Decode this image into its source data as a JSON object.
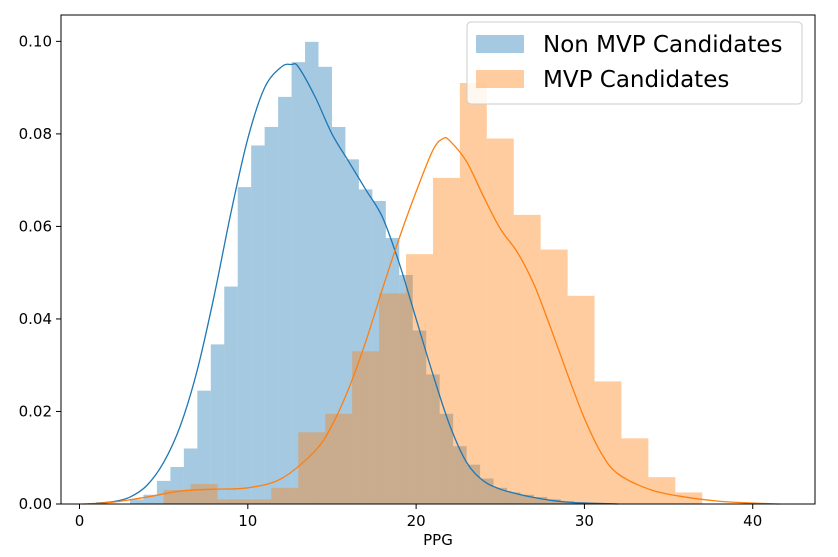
{
  "chart_data": {
    "type": "bar",
    "subtype": "overlaid histogram with KDE curves",
    "title": "",
    "xlabel": "PPG",
    "ylabel": "",
    "xlim": [
      -1.1,
      43.7
    ],
    "ylim": [
      0,
      0.1057
    ],
    "xticks": [
      0,
      10,
      20,
      30,
      40
    ],
    "xtick_labels": [
      "0",
      "10",
      "20",
      "30",
      "40"
    ],
    "yticks": [
      0.0,
      0.02,
      0.04,
      0.06,
      0.08,
      0.1
    ],
    "ytick_labels": [
      "0.00",
      "0.02",
      "0.04",
      "0.06",
      "0.08",
      "0.10"
    ],
    "grid": false,
    "legend_position": "top-right",
    "series": [
      {
        "name": "Non MVP Candidates",
        "color": "#1f77b4",
        "bar_alpha": 0.4,
        "bin_edges": [
          3.0,
          3.8,
          4.6,
          5.4,
          6.2,
          7.0,
          7.8,
          8.6,
          9.4,
          10.2,
          11.0,
          11.8,
          12.6,
          13.4,
          14.2,
          15.0,
          15.8,
          16.6,
          17.4,
          18.2,
          19.0,
          19.8,
          20.6,
          21.4,
          22.2,
          23.0,
          23.8,
          24.6,
          25.4,
          26.2,
          27.0,
          27.8,
          28.6,
          29.4,
          30.2,
          31.0,
          31.8
        ],
        "density": [
          0.001,
          0.002,
          0.005,
          0.008,
          0.012,
          0.0245,
          0.0345,
          0.047,
          0.0685,
          0.0775,
          0.0815,
          0.088,
          0.0955,
          0.0999,
          0.0945,
          0.0815,
          0.0745,
          0.068,
          0.0655,
          0.0575,
          0.0495,
          0.0375,
          0.028,
          0.0195,
          0.0125,
          0.0085,
          0.0055,
          0.0035,
          0.0025,
          0.002,
          0.0015,
          0.001,
          0.0006,
          0.0004,
          0.0003,
          0.0002
        ],
        "kde": {
          "x": [
            1,
            2,
            3,
            4,
            5,
            6,
            7,
            8,
            9,
            10,
            11,
            12,
            12.6,
            13,
            14,
            15,
            16,
            17,
            18,
            19,
            20,
            21,
            22,
            23,
            24,
            25,
            26,
            27,
            28,
            29,
            30,
            31,
            32
          ],
          "y": [
            0.0002,
            0.0005,
            0.0015,
            0.004,
            0.009,
            0.017,
            0.029,
            0.045,
            0.063,
            0.079,
            0.09,
            0.0945,
            0.095,
            0.0945,
            0.088,
            0.08,
            0.074,
            0.068,
            0.062,
            0.052,
            0.04,
            0.028,
            0.017,
            0.009,
            0.005,
            0.0032,
            0.0022,
            0.0014,
            0.0008,
            0.0004,
            0.0002,
            0.0001,
            0.0
          ]
        }
      },
      {
        "name": "MVP Candidates",
        "color": "#ff7f0e",
        "bar_alpha": 0.4,
        "bin_edges": [
          5.0,
          6.6,
          8.2,
          9.8,
          11.4,
          13.0,
          14.6,
          16.2,
          17.8,
          19.4,
          21.0,
          22.6,
          24.2,
          25.8,
          27.4,
          29.0,
          30.6,
          32.2,
          33.8,
          35.4,
          37.0
        ],
        "density": [
          0.003,
          0.0043,
          0.001,
          0.001,
          0.0035,
          0.0155,
          0.0195,
          0.033,
          0.0455,
          0.054,
          0.0705,
          0.091,
          0.079,
          0.0625,
          0.055,
          0.045,
          0.0265,
          0.0142,
          0.0058,
          0.0025
        ],
        "kde": {
          "x": [
            0.2,
            2,
            4,
            6,
            8,
            10,
            12,
            14,
            15,
            16,
            17,
            18,
            19,
            20,
            21,
            21.6,
            22,
            23,
            24,
            25,
            26,
            27,
            28,
            29,
            30,
            31,
            32,
            34,
            36,
            38,
            40,
            41.6
          ],
          "y": [
            0.0,
            0.0004,
            0.0015,
            0.0028,
            0.0032,
            0.0035,
            0.0055,
            0.0115,
            0.017,
            0.025,
            0.035,
            0.0465,
            0.0575,
            0.0675,
            0.0765,
            0.079,
            0.0785,
            0.074,
            0.0665,
            0.0595,
            0.0545,
            0.0475,
            0.038,
            0.028,
            0.0185,
            0.011,
            0.0065,
            0.003,
            0.0015,
            0.0006,
            0.0002,
            0.0
          ]
        }
      }
    ],
    "colors": {
      "blue": "#1f77b4",
      "orange": "#ff7f0e"
    }
  }
}
